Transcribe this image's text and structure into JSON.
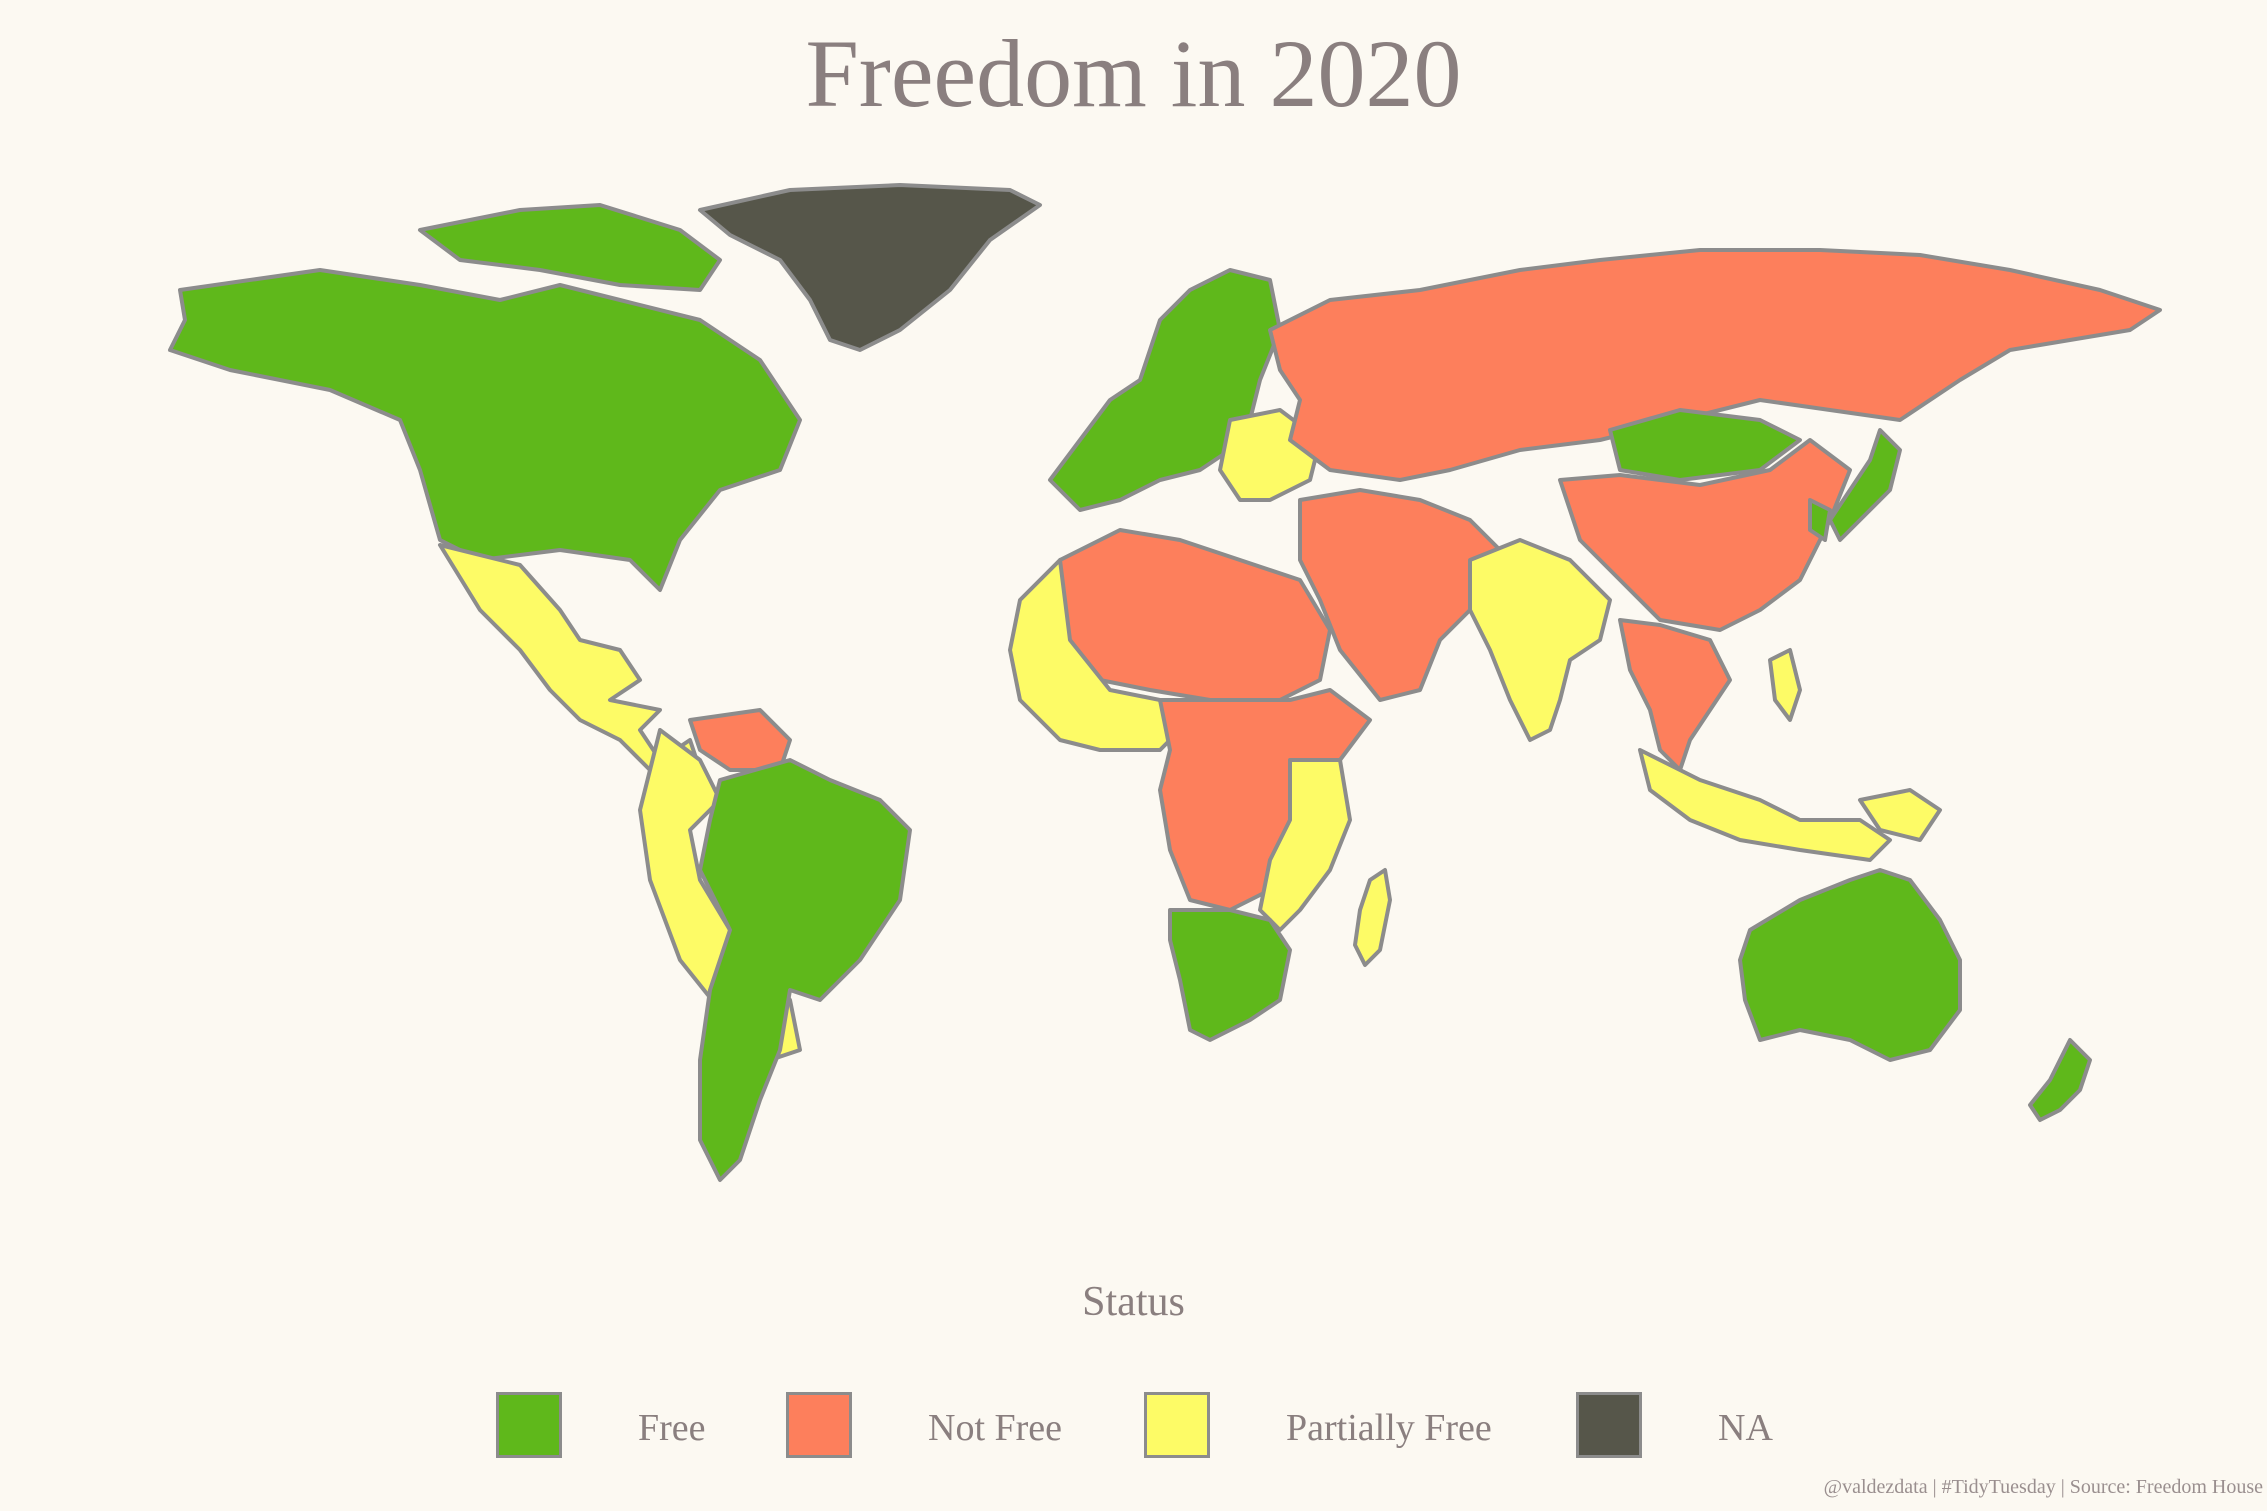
{
  "title": "Freedom in 2020",
  "legend": {
    "title": "Status",
    "items": [
      {
        "label": "Free",
        "color": "#5fb81b"
      },
      {
        "label": "Not Free",
        "color": "#fd7f5c"
      },
      {
        "label": "Partially Free",
        "color": "#fdfb66"
      },
      {
        "label": "NA",
        "color": "#56564a"
      }
    ]
  },
  "caption": "@valdezdata | #TidyTuesday | Source: Freedom House",
  "colors": {
    "background": "#fcf9f2",
    "border": "#8c8c8c"
  },
  "regions": [
    {
      "name": "north-america",
      "status": "Free"
    },
    {
      "name": "greenland",
      "status": "NA"
    },
    {
      "name": "mexico-central-america",
      "status": "Partially Free"
    },
    {
      "name": "south-america",
      "status": "Free"
    },
    {
      "name": "andes",
      "status": "Partially Free"
    },
    {
      "name": "venezuela",
      "status": "Not Free"
    },
    {
      "name": "europe",
      "status": "Free"
    },
    {
      "name": "eastern-europe",
      "status": "Partially Free"
    },
    {
      "name": "russia-central-asia",
      "status": "Not Free"
    },
    {
      "name": "mongolia",
      "status": "Free"
    },
    {
      "name": "china",
      "status": "Not Free"
    },
    {
      "name": "middle-east",
      "status": "Not Free"
    },
    {
      "name": "north-africa",
      "status": "Not Free"
    },
    {
      "name": "west-africa",
      "status": "Partially Free"
    },
    {
      "name": "central-africa",
      "status": "Not Free"
    },
    {
      "name": "east-africa",
      "status": "Partially Free"
    },
    {
      "name": "southern-africa",
      "status": "Free"
    },
    {
      "name": "madagascar",
      "status": "Partially Free"
    },
    {
      "name": "india",
      "status": "Partially Free"
    },
    {
      "name": "southeast-asia",
      "status": "Not Free"
    },
    {
      "name": "indonesia",
      "status": "Partially Free"
    },
    {
      "name": "japan-korea",
      "status": "Free"
    },
    {
      "name": "australia",
      "status": "Free"
    },
    {
      "name": "new-zealand",
      "status": "Free"
    }
  ]
}
